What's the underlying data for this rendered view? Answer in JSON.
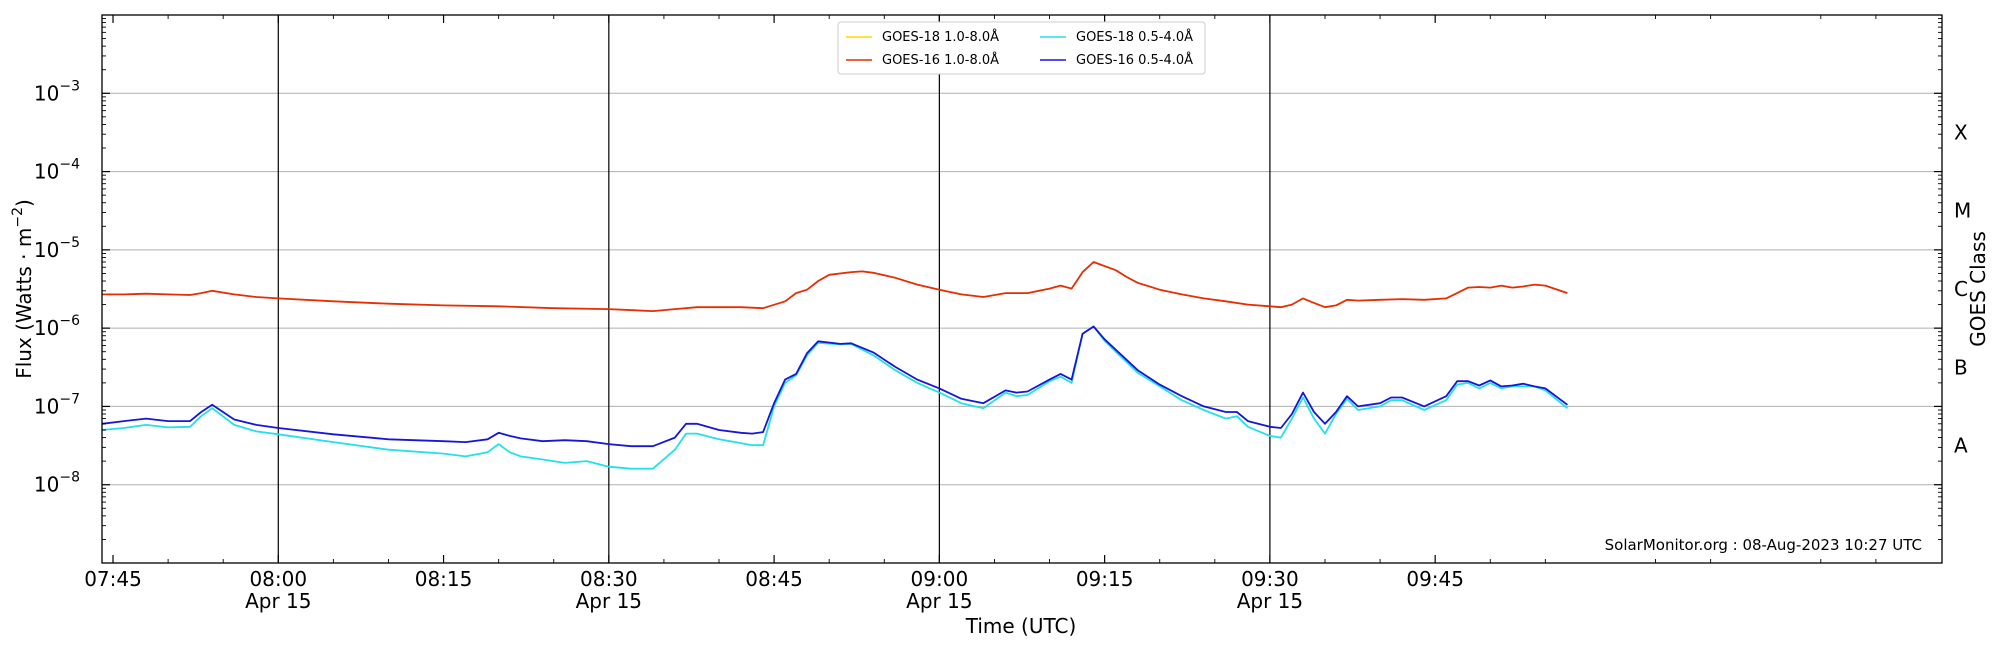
{
  "chart_data": {
    "type": "line",
    "xlabel": "Time (UTC)",
    "ylabel_main": "Flux (Watts · m",
    "ylabel_sup": "−2",
    "ylabel_close": ")",
    "right_label": "GOES Class",
    "y_scale": "log",
    "ylim": [
      1e-09,
      0.01
    ],
    "xlim_minutes_of_day": [
      464,
      631
    ],
    "y_ticks": [
      {
        "base": "10",
        "exp": "−8",
        "value": 1e-08
      },
      {
        "base": "10",
        "exp": "−7",
        "value": 1e-07
      },
      {
        "base": "10",
        "exp": "−6",
        "value": 1e-06
      },
      {
        "base": "10",
        "exp": "−5",
        "value": 1e-05
      },
      {
        "base": "10",
        "exp": "−4",
        "value": 0.0001
      },
      {
        "base": "10",
        "exp": "−3",
        "value": 0.001
      }
    ],
    "x_ticks": [
      {
        "t": 465,
        "time": "07:45",
        "date": ""
      },
      {
        "t": 480,
        "time": "08:00",
        "date": "Apr 15"
      },
      {
        "t": 495,
        "time": "08:15",
        "date": ""
      },
      {
        "t": 510,
        "time": "08:30",
        "date": "Apr 15"
      },
      {
        "t": 525,
        "time": "08:45",
        "date": ""
      },
      {
        "t": 540,
        "time": "09:00",
        "date": "Apr 15"
      },
      {
        "t": 555,
        "time": "09:15",
        "date": ""
      },
      {
        "t": 570,
        "time": "09:30",
        "date": "Apr 15"
      },
      {
        "t": 585,
        "time": "09:45",
        "date": ""
      }
    ],
    "vertical_lines": [
      480,
      510,
      540,
      570
    ],
    "goes_classes": [
      {
        "label": "A",
        "value": 3.16e-08
      },
      {
        "label": "B",
        "value": 3.16e-07
      },
      {
        "label": "C",
        "value": 3.16e-06
      },
      {
        "label": "M",
        "value": 3.16e-05
      },
      {
        "label": "X",
        "value": 0.000316
      }
    ],
    "grid": "horizontal at decades",
    "legend_position": "top-center",
    "credit": "SolarMonitor.org : 08-Aug-2023 10:27 UTC",
    "series": [
      {
        "name": "GOES-18 1.0-8.0Å",
        "color": "#FFD700",
        "points": []
      },
      {
        "name": "GOES-16 1.0-8.0Å",
        "color": "#E62E00",
        "points": [
          [
            464,
            2.7e-06
          ],
          [
            466,
            2.7e-06
          ],
          [
            468,
            2.75e-06
          ],
          [
            470,
            2.7e-06
          ],
          [
            472,
            2.65e-06
          ],
          [
            473,
            2.8e-06
          ],
          [
            474,
            3e-06
          ],
          [
            476,
            2.7e-06
          ],
          [
            478,
            2.5e-06
          ],
          [
            480,
            2.4e-06
          ],
          [
            485,
            2.2e-06
          ],
          [
            490,
            2.05e-06
          ],
          [
            495,
            1.95e-06
          ],
          [
            500,
            1.9e-06
          ],
          [
            505,
            1.8e-06
          ],
          [
            510,
            1.75e-06
          ],
          [
            514,
            1.65e-06
          ],
          [
            516,
            1.75e-06
          ],
          [
            518,
            1.85e-06
          ],
          [
            520,
            1.85e-06
          ],
          [
            522,
            1.85e-06
          ],
          [
            524,
            1.8e-06
          ],
          [
            526,
            2.2e-06
          ],
          [
            527,
            2.8e-06
          ],
          [
            528,
            3.1e-06
          ],
          [
            529,
            4e-06
          ],
          [
            530,
            4.8e-06
          ],
          [
            532,
            5.2e-06
          ],
          [
            533,
            5.3e-06
          ],
          [
            534,
            5.1e-06
          ],
          [
            536,
            4.4e-06
          ],
          [
            538,
            3.6e-06
          ],
          [
            540,
            3.1e-06
          ],
          [
            542,
            2.7e-06
          ],
          [
            544,
            2.5e-06
          ],
          [
            546,
            2.8e-06
          ],
          [
            548,
            2.8e-06
          ],
          [
            550,
            3.2e-06
          ],
          [
            551,
            3.5e-06
          ],
          [
            552,
            3.2e-06
          ],
          [
            553,
            5.2e-06
          ],
          [
            554,
            7e-06
          ],
          [
            556,
            5.5e-06
          ],
          [
            557,
            4.5e-06
          ],
          [
            558,
            3.8e-06
          ],
          [
            560,
            3.1e-06
          ],
          [
            562,
            2.7e-06
          ],
          [
            564,
            2.4e-06
          ],
          [
            566,
            2.2e-06
          ],
          [
            568,
            2e-06
          ],
          [
            570,
            1.9e-06
          ],
          [
            571,
            1.85e-06
          ],
          [
            572,
            2e-06
          ],
          [
            573,
            2.4e-06
          ],
          [
            574,
            2.1e-06
          ],
          [
            575,
            1.85e-06
          ],
          [
            576,
            1.95e-06
          ],
          [
            577,
            2.3e-06
          ],
          [
            578,
            2.25e-06
          ],
          [
            580,
            2.3e-06
          ],
          [
            582,
            2.35e-06
          ],
          [
            584,
            2.3e-06
          ],
          [
            586,
            2.4e-06
          ],
          [
            588,
            3.3e-06
          ],
          [
            589,
            3.35e-06
          ],
          [
            590,
            3.3e-06
          ],
          [
            591,
            3.5e-06
          ],
          [
            592,
            3.3e-06
          ],
          [
            593,
            3.4e-06
          ],
          [
            594,
            3.6e-06
          ],
          [
            595,
            3.5e-06
          ],
          [
            597,
            2.8e-06
          ]
        ]
      },
      {
        "name": "GOES-18 0.5-4.0Å",
        "color": "#22E1E8",
        "points": [
          [
            464,
            5e-08
          ],
          [
            466,
            5.3e-08
          ],
          [
            468,
            5.8e-08
          ],
          [
            470,
            5.4e-08
          ],
          [
            472,
            5.5e-08
          ],
          [
            473,
            7.5e-08
          ],
          [
            474,
            9.5e-08
          ],
          [
            476,
            5.8e-08
          ],
          [
            478,
            4.8e-08
          ],
          [
            480,
            4.4e-08
          ],
          [
            485,
            3.5e-08
          ],
          [
            490,
            2.8e-08
          ],
          [
            495,
            2.5e-08
          ],
          [
            497,
            2.3e-08
          ],
          [
            499,
            2.6e-08
          ],
          [
            500,
            3.3e-08
          ],
          [
            501,
            2.6e-08
          ],
          [
            502,
            2.3e-08
          ],
          [
            504,
            2.1e-08
          ],
          [
            506,
            1.9e-08
          ],
          [
            508,
            2e-08
          ],
          [
            510,
            1.7e-08
          ],
          [
            512,
            1.6e-08
          ],
          [
            514,
            1.6e-08
          ],
          [
            516,
            2.8e-08
          ],
          [
            517,
            4.5e-08
          ],
          [
            518,
            4.5e-08
          ],
          [
            520,
            3.8e-08
          ],
          [
            522,
            3.4e-08
          ],
          [
            523,
            3.2e-08
          ],
          [
            524,
            3.2e-08
          ],
          [
            525,
            1e-07
          ],
          [
            526,
            2e-07
          ],
          [
            527,
            2.5e-07
          ],
          [
            528,
            4.5e-07
          ],
          [
            529,
            6.5e-07
          ],
          [
            531,
            6.2e-07
          ],
          [
            532,
            6.3e-07
          ],
          [
            534,
            4.5e-07
          ],
          [
            536,
            2.9e-07
          ],
          [
            538,
            2e-07
          ],
          [
            540,
            1.5e-07
          ],
          [
            542,
            1.1e-07
          ],
          [
            544,
            9.5e-08
          ],
          [
            546,
            1.5e-07
          ],
          [
            547,
            1.35e-07
          ],
          [
            548,
            1.4e-07
          ],
          [
            550,
            2.1e-07
          ],
          [
            551,
            2.4e-07
          ],
          [
            552,
            2e-07
          ],
          [
            553,
            8.5e-07
          ],
          [
            554,
            1.05e-06
          ],
          [
            555,
            6.9e-07
          ],
          [
            556,
            5e-07
          ],
          [
            558,
            2.7e-07
          ],
          [
            560,
            1.8e-07
          ],
          [
            562,
            1.2e-07
          ],
          [
            564,
            9e-08
          ],
          [
            566,
            7e-08
          ],
          [
            567,
            7.5e-08
          ],
          [
            568,
            5.5e-08
          ],
          [
            570,
            4.2e-08
          ],
          [
            571,
            4e-08
          ],
          [
            572,
            7e-08
          ],
          [
            573,
            1.3e-07
          ],
          [
            574,
            7e-08
          ],
          [
            575,
            4.5e-08
          ],
          [
            576,
            8e-08
          ],
          [
            577,
            1.25e-07
          ],
          [
            578,
            9e-08
          ],
          [
            580,
            1e-07
          ],
          [
            581,
            1.2e-07
          ],
          [
            582,
            1.2e-07
          ],
          [
            584,
            9e-08
          ],
          [
            586,
            1.2e-07
          ],
          [
            587,
            1.9e-07
          ],
          [
            588,
            2e-07
          ],
          [
            589,
            1.7e-07
          ],
          [
            590,
            2e-07
          ],
          [
            591,
            1.7e-07
          ],
          [
            592,
            1.8e-07
          ],
          [
            593,
            1.8e-07
          ],
          [
            594,
            1.8e-07
          ],
          [
            595,
            1.6e-07
          ],
          [
            597,
            9.5e-08
          ]
        ]
      },
      {
        "name": "GOES-16 0.5-4.0Å",
        "color": "#1616D8",
        "points": [
          [
            464,
            6e-08
          ],
          [
            466,
            6.5e-08
          ],
          [
            468,
            7e-08
          ],
          [
            470,
            6.5e-08
          ],
          [
            472,
            6.5e-08
          ],
          [
            473,
            8.5e-08
          ],
          [
            474,
            1.05e-07
          ],
          [
            476,
            6.8e-08
          ],
          [
            478,
            5.8e-08
          ],
          [
            480,
            5.3e-08
          ],
          [
            485,
            4.4e-08
          ],
          [
            490,
            3.8e-08
          ],
          [
            495,
            3.6e-08
          ],
          [
            497,
            3.5e-08
          ],
          [
            499,
            3.8e-08
          ],
          [
            500,
            4.6e-08
          ],
          [
            501,
            4.2e-08
          ],
          [
            502,
            3.9e-08
          ],
          [
            504,
            3.6e-08
          ],
          [
            506,
            3.7e-08
          ],
          [
            508,
            3.6e-08
          ],
          [
            510,
            3.3e-08
          ],
          [
            512,
            3.1e-08
          ],
          [
            514,
            3.1e-08
          ],
          [
            516,
            4e-08
          ],
          [
            517,
            6e-08
          ],
          [
            518,
            6e-08
          ],
          [
            520,
            5e-08
          ],
          [
            522,
            4.6e-08
          ],
          [
            523,
            4.5e-08
          ],
          [
            524,
            4.7e-08
          ],
          [
            525,
            1.1e-07
          ],
          [
            526,
            2.2e-07
          ],
          [
            527,
            2.6e-07
          ],
          [
            528,
            4.8e-07
          ],
          [
            529,
            6.8e-07
          ],
          [
            531,
            6.3e-07
          ],
          [
            532,
            6.4e-07
          ],
          [
            534,
            4.9e-07
          ],
          [
            536,
            3.2e-07
          ],
          [
            538,
            2.2e-07
          ],
          [
            540,
            1.7e-07
          ],
          [
            542,
            1.25e-07
          ],
          [
            544,
            1.1e-07
          ],
          [
            546,
            1.6e-07
          ],
          [
            547,
            1.5e-07
          ],
          [
            548,
            1.55e-07
          ],
          [
            550,
            2.2e-07
          ],
          [
            551,
            2.6e-07
          ],
          [
            552,
            2.2e-07
          ],
          [
            553,
            8.5e-07
          ],
          [
            554,
            1.05e-06
          ],
          [
            555,
            7.2e-07
          ],
          [
            556,
            5.3e-07
          ],
          [
            558,
            2.9e-07
          ],
          [
            560,
            1.9e-07
          ],
          [
            562,
            1.35e-07
          ],
          [
            564,
            1e-07
          ],
          [
            566,
            8.5e-08
          ],
          [
            567,
            8.5e-08
          ],
          [
            568,
            6.5e-08
          ],
          [
            570,
            5.5e-08
          ],
          [
            571,
            5.3e-08
          ],
          [
            572,
            8e-08
          ],
          [
            573,
            1.5e-07
          ],
          [
            574,
            8.5e-08
          ],
          [
            575,
            6e-08
          ],
          [
            576,
            8.5e-08
          ],
          [
            577,
            1.35e-07
          ],
          [
            578,
            1e-07
          ],
          [
            580,
            1.1e-07
          ],
          [
            581,
            1.3e-07
          ],
          [
            582,
            1.3e-07
          ],
          [
            584,
            1e-07
          ],
          [
            586,
            1.35e-07
          ],
          [
            587,
            2.1e-07
          ],
          [
            588,
            2.1e-07
          ],
          [
            589,
            1.85e-07
          ],
          [
            590,
            2.15e-07
          ],
          [
            591,
            1.8e-07
          ],
          [
            592,
            1.85e-07
          ],
          [
            593,
            1.95e-07
          ],
          [
            594,
            1.8e-07
          ],
          [
            595,
            1.7e-07
          ],
          [
            597,
            1.05e-07
          ]
        ]
      }
    ]
  }
}
